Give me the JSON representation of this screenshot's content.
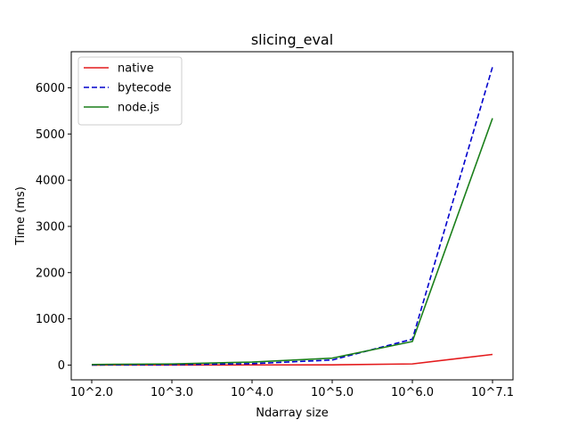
{
  "chart_data": {
    "type": "line",
    "title": "slicing_eval",
    "xlabel": "Ndarray size",
    "ylabel": "Time (ms)",
    "categories": [
      "10^2.0",
      "10^3.0",
      "10^4.0",
      "10^5.0",
      "10^6.0",
      "10^7.1"
    ],
    "ylim": [
      -320,
      6780
    ],
    "yticks": [
      0,
      1000,
      2000,
      3000,
      4000,
      5000,
      6000
    ],
    "grid": false,
    "legend_position": "top-left",
    "series": [
      {
        "name": "native",
        "values": [
          0,
          2,
          3,
          5,
          25,
          230
        ],
        "color": "#e41a1c",
        "dash": "solid"
      },
      {
        "name": "bytecode",
        "values": [
          2,
          8,
          30,
          110,
          560,
          6450
        ],
        "color": "#0000cc",
        "dash": "dashed"
      },
      {
        "name": "node.js",
        "values": [
          12,
          25,
          65,
          150,
          510,
          5340
        ],
        "color": "#1a7f1a",
        "dash": "solid"
      }
    ]
  }
}
